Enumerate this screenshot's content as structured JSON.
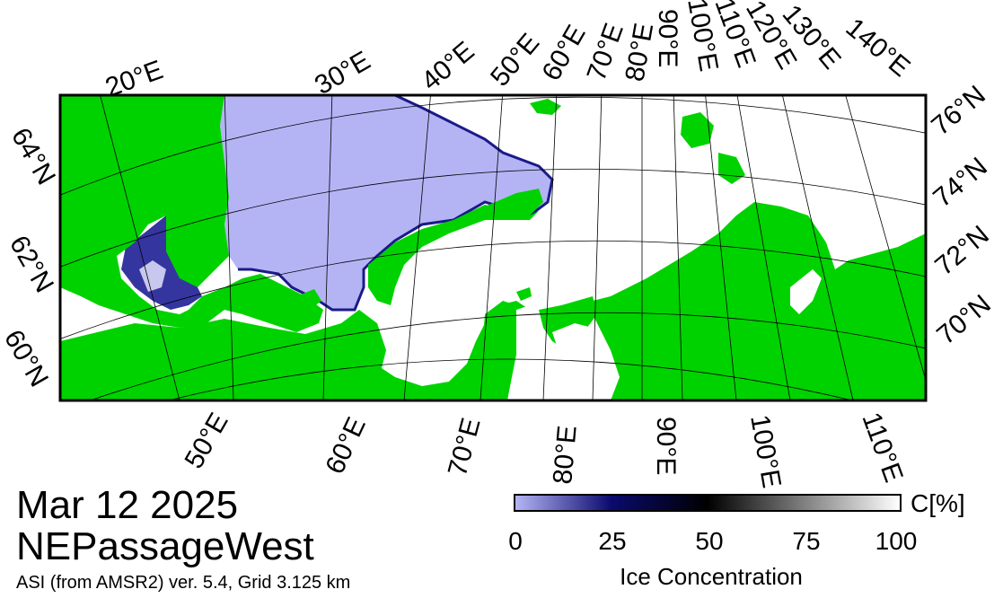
{
  "map": {
    "lon_labels_top": [
      "20°E",
      "30°E",
      "40°E",
      "50°E",
      "60°E",
      "70°E",
      "80°E",
      "90°E",
      "100°E",
      "110°E",
      "120°E",
      "130°E",
      "140°E"
    ],
    "lon_labels_bottom": [
      "50°E",
      "60°E",
      "70°E",
      "80°E",
      "90°E",
      "100°E",
      "110°E"
    ],
    "lat_labels_left": [
      "64°N",
      "62°N",
      "60°N"
    ],
    "lat_labels_right": [
      "76°N",
      "74°N",
      "72°N",
      "70°N"
    ],
    "colors": {
      "land": "#00d200",
      "open_water": "#b4b4f5",
      "ice_full": "#ffffff",
      "ice_low": "#1a1a8a",
      "grid": "#000000"
    }
  },
  "title": {
    "date": "Mar 12 2025",
    "region": "NEPassageWest",
    "product": "ASI (from AMSR2) ver. 5.4,  Grid 3.125 km"
  },
  "colorbar": {
    "unit": "C[%]",
    "ticks": [
      "0",
      "25",
      "50",
      "75",
      "100"
    ],
    "tick_values": [
      0,
      25,
      50,
      75,
      100
    ],
    "label": "Ice Concentration",
    "gradient": [
      "#b4b4f5",
      "#0a0a6e",
      "#000000",
      "#7f7f7f",
      "#ffffff"
    ]
  }
}
